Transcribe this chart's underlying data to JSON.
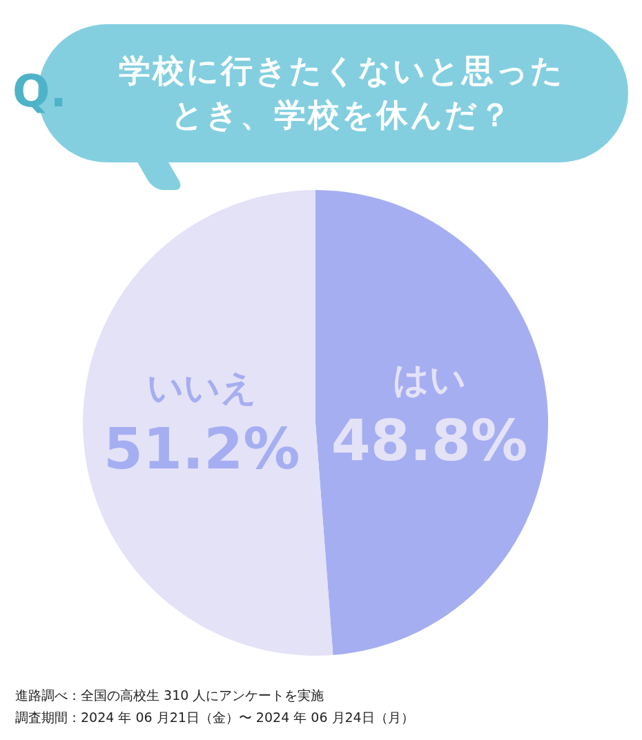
{
  "chart_data": {
    "type": "pie",
    "title": "学校に行きたくないと思ったとき、学校を休んだ？",
    "categories": [
      "はい",
      "いいえ"
    ],
    "values": [
      48.8,
      51.2
    ],
    "colors": [
      "#a6aef2",
      "#e4e2f7"
    ],
    "value_labels": [
      "48.8%",
      "51.2%"
    ],
    "annotations": [
      "Q.",
      "進路調べ：全国の高校生 310 人にアンケートを実施",
      "調査期間：2024 年 06 月21日（金）〜 2024 年 06 月24日（月）"
    ]
  }
}
